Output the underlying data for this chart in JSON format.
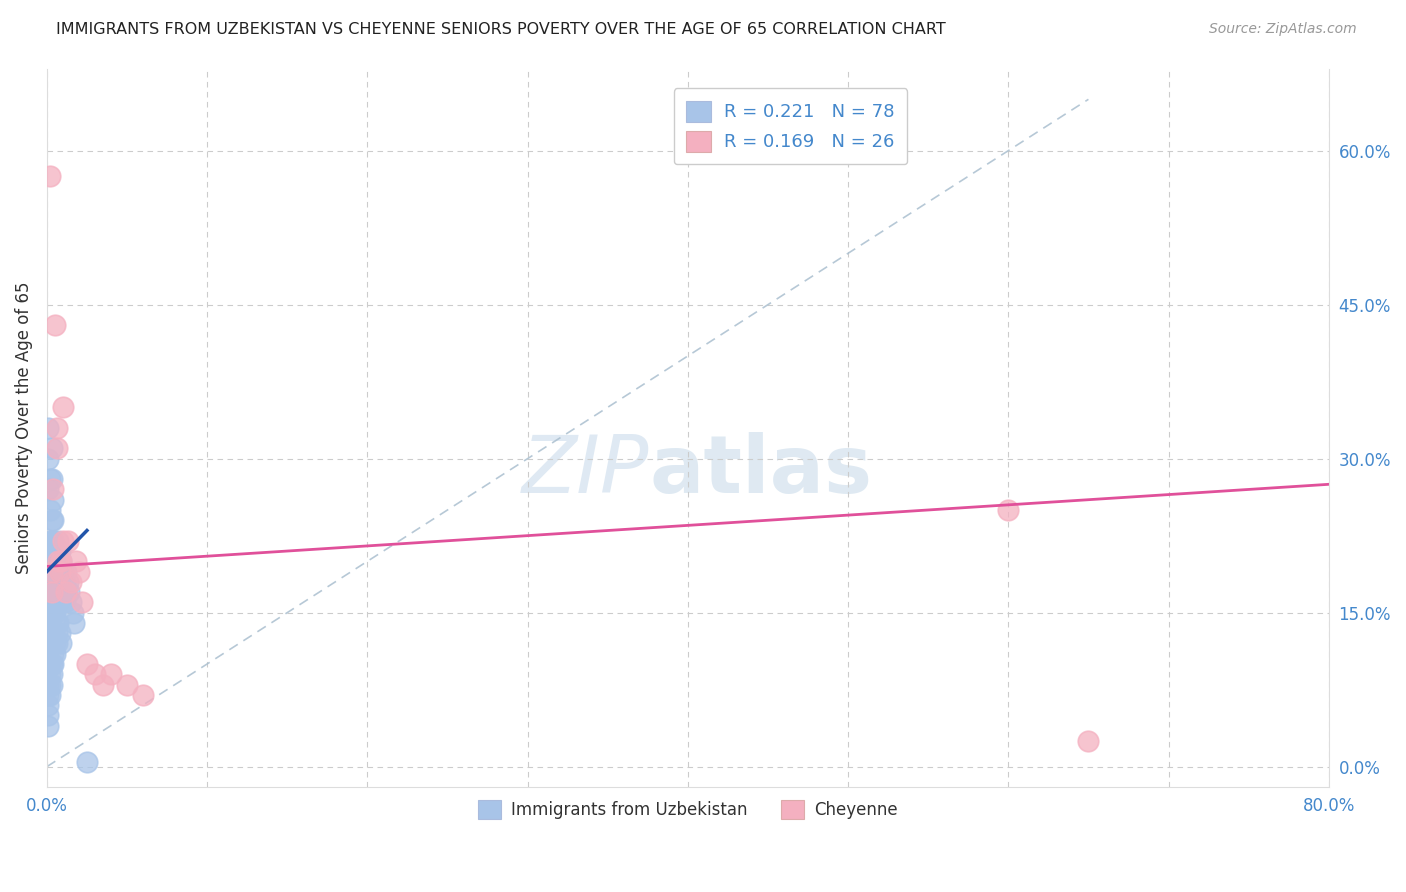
{
  "title": "IMMIGRANTS FROM UZBEKISTAN VS CHEYENNE SENIORS POVERTY OVER THE AGE OF 65 CORRELATION CHART",
  "source": "Source: ZipAtlas.com",
  "ylabel": "Seniors Poverty Over the Age of 65",
  "xlim": [
    0,
    0.8
  ],
  "ylim": [
    -0.02,
    0.68
  ],
  "xtick_positions": [
    0.0,
    0.1,
    0.2,
    0.3,
    0.4,
    0.5,
    0.6,
    0.7,
    0.8
  ],
  "xticklabels": [
    "0.0%",
    "",
    "",
    "",
    "",
    "",
    "",
    "",
    "80.0%"
  ],
  "ytick_positions": [
    0.0,
    0.15,
    0.3,
    0.45,
    0.6
  ],
  "yticklabels": [
    "0.0%",
    "15.0%",
    "30.0%",
    "45.0%",
    "60.0%"
  ],
  "blue_color": "#a8c4e8",
  "pink_color": "#f4b0c0",
  "blue_edge_color": "#7aabda",
  "pink_edge_color": "#e88aa0",
  "blue_line_color": "#2255aa",
  "pink_line_color": "#e0509a",
  "ref_line_color": "#aabfcf",
  "watermark_color": "#c5d8ea",
  "blue_scatter_x": [
    0.001,
    0.001,
    0.001,
    0.001,
    0.001,
    0.002,
    0.002,
    0.002,
    0.002,
    0.002,
    0.002,
    0.002,
    0.003,
    0.003,
    0.003,
    0.003,
    0.003,
    0.004,
    0.004,
    0.004,
    0.004,
    0.004,
    0.005,
    0.005,
    0.005,
    0.005,
    0.006,
    0.006,
    0.006,
    0.006,
    0.007,
    0.007,
    0.007,
    0.007,
    0.008,
    0.008,
    0.008,
    0.009,
    0.009,
    0.01,
    0.01,
    0.011,
    0.011,
    0.012,
    0.012,
    0.013,
    0.014,
    0.015,
    0.016,
    0.017,
    0.001,
    0.001,
    0.001,
    0.001,
    0.001,
    0.002,
    0.002,
    0.002,
    0.003,
    0.003,
    0.003,
    0.004,
    0.004,
    0.005,
    0.005,
    0.006,
    0.006,
    0.007,
    0.008,
    0.009,
    0.001,
    0.001,
    0.001,
    0.002,
    0.002,
    0.003,
    0.003,
    0.025
  ],
  "blue_scatter_y": [
    0.2,
    0.18,
    0.16,
    0.14,
    0.12,
    0.22,
    0.2,
    0.18,
    0.16,
    0.14,
    0.12,
    0.1,
    0.24,
    0.22,
    0.2,
    0.18,
    0.15,
    0.26,
    0.24,
    0.22,
    0.19,
    0.17,
    0.21,
    0.19,
    0.17,
    0.15,
    0.2,
    0.18,
    0.16,
    0.14,
    0.22,
    0.2,
    0.18,
    0.16,
    0.21,
    0.19,
    0.17,
    0.2,
    0.18,
    0.19,
    0.17,
    0.18,
    0.16,
    0.19,
    0.17,
    0.18,
    0.17,
    0.16,
    0.15,
    0.14,
    0.08,
    0.07,
    0.06,
    0.05,
    0.04,
    0.09,
    0.08,
    0.07,
    0.1,
    0.09,
    0.08,
    0.11,
    0.1,
    0.12,
    0.11,
    0.13,
    0.12,
    0.14,
    0.13,
    0.12,
    0.33,
    0.3,
    0.27,
    0.28,
    0.25,
    0.31,
    0.28,
    0.005
  ],
  "pink_scatter_x": [
    0.002,
    0.003,
    0.004,
    0.005,
    0.006,
    0.007,
    0.008,
    0.009,
    0.01,
    0.012,
    0.013,
    0.015,
    0.018,
    0.02,
    0.022,
    0.025,
    0.03,
    0.035,
    0.04,
    0.05,
    0.06,
    0.65,
    0.6,
    0.003,
    0.006,
    0.01
  ],
  "pink_scatter_y": [
    0.575,
    0.19,
    0.27,
    0.43,
    0.31,
    0.2,
    0.19,
    0.2,
    0.35,
    0.17,
    0.22,
    0.18,
    0.2,
    0.19,
    0.16,
    0.1,
    0.09,
    0.08,
    0.09,
    0.08,
    0.07,
    0.025,
    0.25,
    0.17,
    0.33,
    0.22
  ],
  "blue_trend_x": [
    0.0,
    0.025
  ],
  "blue_trend_y": [
    0.19,
    0.23
  ],
  "pink_trend_x": [
    0.0,
    0.8
  ],
  "pink_trend_y": [
    0.195,
    0.275
  ],
  "ref_line_x": [
    0.0,
    0.65
  ],
  "ref_line_y": [
    0.0,
    0.65
  ]
}
